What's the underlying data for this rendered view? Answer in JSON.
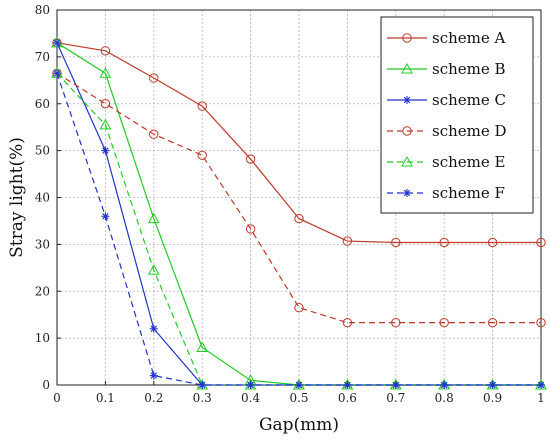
{
  "chart_data": {
    "type": "line",
    "xlabel": "Gap(mm)",
    "ylabel": "Stray light(%)",
    "xlim": [
      0,
      1
    ],
    "ylim": [
      0,
      80
    ],
    "xticks": [
      "0",
      "0.1",
      "0.2",
      "0.3",
      "0.4",
      "0.5",
      "0.6",
      "0.7",
      "0.8",
      "0.9",
      "1"
    ],
    "yticks": [
      "0",
      "10",
      "20",
      "30",
      "40",
      "50",
      "60",
      "70",
      "80"
    ],
    "grid": true,
    "legend_position": "top-right",
    "series": [
      {
        "name": "scheme A",
        "color": "#c0392b",
        "dash": "solid",
        "marker": "circle",
        "x": [
          0,
          0.1,
          0.2,
          0.3,
          0.4,
          0.5,
          0.6,
          0.7,
          0.8,
          0.9,
          1
        ],
        "y": [
          73,
          71.3,
          65.5,
          59.5,
          48.2,
          35.5,
          30.7,
          30.4,
          30.4,
          30.4,
          30.4
        ]
      },
      {
        "name": "scheme B",
        "color": "#22cc22",
        "dash": "solid",
        "marker": "triangle",
        "x": [
          0,
          0.1,
          0.2,
          0.3,
          0.4,
          0.5,
          0.6,
          0.7,
          0.8,
          0.9,
          1
        ],
        "y": [
          73,
          66.5,
          35.5,
          8,
          1,
          0,
          0,
          0,
          0,
          0,
          0
        ]
      },
      {
        "name": "scheme C",
        "color": "#2233cc",
        "dash": "solid",
        "marker": "star",
        "x": [
          0,
          0.1,
          0.2,
          0.3,
          0.4,
          0.5,
          0.6,
          0.7,
          0.8,
          0.9,
          1
        ],
        "y": [
          73,
          50,
          12,
          0,
          0,
          0,
          0,
          0,
          0,
          0,
          0
        ]
      },
      {
        "name": "scheme D",
        "color": "#c0392b",
        "dash": "dashed",
        "marker": "circle",
        "x": [
          0,
          0.1,
          0.2,
          0.3,
          0.4,
          0.5,
          0.6,
          0.7,
          0.8,
          0.9,
          1
        ],
        "y": [
          66.5,
          60,
          53.5,
          49,
          33.3,
          16.5,
          13.3,
          13.3,
          13.3,
          13.3,
          13.3
        ]
      },
      {
        "name": "scheme E",
        "color": "#22cc22",
        "dash": "dashed",
        "marker": "triangle",
        "x": [
          0,
          0.1,
          0.2,
          0.3,
          0.4,
          0.5,
          0.6,
          0.7,
          0.8,
          0.9,
          1
        ],
        "y": [
          66.5,
          55.5,
          24.5,
          0,
          0,
          0,
          0,
          0,
          0,
          0,
          0
        ]
      },
      {
        "name": "scheme F",
        "color": "#2233cc",
        "dash": "dashed",
        "marker": "star",
        "x": [
          0,
          0.1,
          0.2,
          0.3,
          0.4,
          0.5,
          0.6,
          0.7,
          0.8,
          0.9,
          1
        ],
        "y": [
          66.5,
          36,
          2,
          0,
          0,
          0,
          0,
          0,
          0,
          0,
          0
        ]
      }
    ]
  }
}
